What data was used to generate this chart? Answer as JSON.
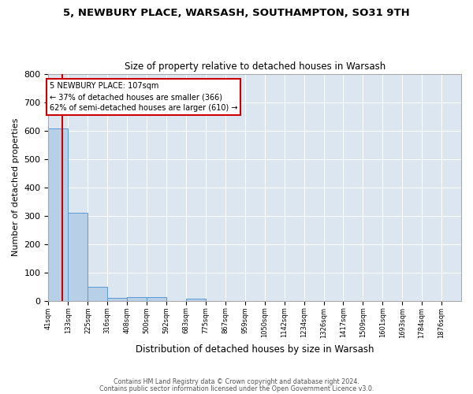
{
  "title1": "5, NEWBURY PLACE, WARSASH, SOUTHAMPTON, SO31 9TH",
  "title2": "Size of property relative to detached houses in Warsash",
  "xlabel": "Distribution of detached houses by size in Warsash",
  "ylabel": "Number of detached properties",
  "bin_labels": [
    "41sqm",
    "133sqm",
    "225sqm",
    "316sqm",
    "408sqm",
    "500sqm",
    "592sqm",
    "683sqm",
    "775sqm",
    "867sqm",
    "959sqm",
    "1050sqm",
    "1142sqm",
    "1234sqm",
    "1326sqm",
    "1417sqm",
    "1509sqm",
    "1601sqm",
    "1693sqm",
    "1784sqm",
    "1876sqm"
  ],
  "bar_values": [
    608,
    311,
    50,
    11,
    14,
    14,
    0,
    7,
    0,
    0,
    0,
    0,
    0,
    0,
    0,
    0,
    0,
    0,
    0,
    0,
    0
  ],
  "bar_color": "#b8cfe8",
  "bar_edge_color": "#5b9bd5",
  "vline_x": 107,
  "annotation_line1": "5 NEWBURY PLACE: 107sqm",
  "annotation_line2": "← 37% of detached houses are smaller (366)",
  "annotation_line3": "62% of semi-detached houses are larger (610) →",
  "annotation_box_color": "#ffffff",
  "annotation_border_color": "#cc0000",
  "vline_color": "#cc0000",
  "ylim": [
    0,
    800
  ],
  "yticks": [
    0,
    100,
    200,
    300,
    400,
    500,
    600,
    700,
    800
  ],
  "footer1": "Contains HM Land Registry data © Crown copyright and database right 2024.",
  "footer2": "Contains public sector information licensed under the Open Government Licence v3.0.",
  "fig_bg_color": "#ffffff",
  "plot_bg_color": "#dce6f1",
  "bin_edges": [
    41,
    133,
    225,
    316,
    408,
    500,
    592,
    683,
    775,
    867,
    959,
    1050,
    1142,
    1234,
    1326,
    1417,
    1509,
    1601,
    1693,
    1784,
    1876,
    1968
  ]
}
